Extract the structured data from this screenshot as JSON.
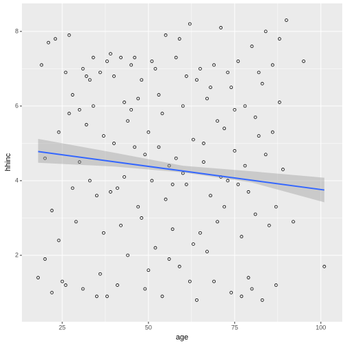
{
  "chart_data": {
    "type": "scatter",
    "xlabel": "age",
    "ylabel": "hhinc",
    "x": [
      18,
      19,
      20,
      21,
      22,
      23,
      24,
      25,
      26,
      27,
      28,
      29,
      30,
      31,
      32,
      33,
      34,
      35,
      36,
      37,
      38,
      39,
      40,
      41,
      42,
      43,
      44,
      45,
      46,
      47,
      48,
      49,
      50,
      51,
      52,
      53,
      54,
      55,
      56,
      57,
      58,
      59,
      60,
      61,
      62,
      63,
      64,
      65,
      66,
      67,
      68,
      69,
      70,
      71,
      72,
      73,
      74,
      75,
      76,
      77,
      78,
      79,
      80,
      81,
      82,
      83,
      84,
      85,
      86,
      87,
      88,
      89,
      90,
      92,
      95,
      101,
      20,
      24,
      28,
      32,
      36,
      40,
      44,
      48,
      52,
      56,
      60,
      64,
      68,
      72,
      76,
      80,
      84,
      88,
      27,
      31,
      35,
      39,
      43,
      47,
      51,
      55,
      59,
      63,
      67,
      71,
      75,
      79,
      83,
      87,
      22,
      26,
      30,
      34,
      38,
      42,
      46,
      50,
      54,
      58,
      62,
      66,
      70,
      74,
      78,
      82,
      86,
      45,
      53,
      61,
      57,
      65,
      69,
      49,
      41,
      37,
      33,
      73,
      77,
      81
    ],
    "values": [
      1.4,
      7.1,
      1.9,
      7.7,
      1.0,
      7.8,
      5.3,
      1.3,
      6.9,
      7.9,
      6.3,
      2.9,
      5.9,
      1.1,
      6.8,
      4.0,
      7.3,
      0.9,
      6.9,
      2.6,
      7.2,
      3.7,
      5.0,
      1.2,
      7.3,
      6.1,
      2.0,
      7.1,
      4.9,
      3.3,
      6.7,
      1.1,
      5.3,
      7.2,
      2.2,
      6.3,
      0.9,
      7.9,
      4.4,
      2.7,
      7.3,
      1.7,
      6.0,
      3.9,
      8.2,
      5.1,
      0.8,
      7.0,
      4.5,
      2.1,
      6.5,
      1.3,
      5.6,
      8.1,
      3.3,
      6.9,
      1.0,
      4.8,
      7.2,
      2.5,
      6.0,
      1.4,
      7.6,
      3.1,
      5.2,
      0.8,
      8.0,
      2.8,
      7.1,
      1.2,
      6.1,
      4.3,
      8.3,
      2.9,
      7.2,
      1.7,
      4.6,
      2.4,
      3.8,
      5.5,
      1.5,
      6.8,
      5.6,
      3.0,
      7.0,
      1.9,
      4.2,
      6.7,
      3.6,
      5.4,
      3.9,
      1.1,
      4.7,
      7.8,
      5.8,
      7.0,
      3.6,
      7.4,
      4.1,
      6.2,
      4.0,
      3.5,
      7.8,
      2.3,
      6.2,
      4.1,
      5.9,
      3.7,
      6.6,
      3.3,
      3.2,
      1.2,
      4.5,
      6.0,
      0.9,
      2.8,
      7.3,
      1.6,
      5.8,
      4.6,
      1.3,
      5.0,
      2.9,
      6.5,
      4.4,
      6.9,
      5.3,
      5.9,
      4.9,
      6.8,
      3.9,
      2.6,
      7.1,
      4.7,
      3.8,
      5.2,
      6.7,
      4.0,
      0.9,
      5.7
    ],
    "color": "#000000",
    "fit": {
      "x": [
        18,
        101
      ],
      "y": [
        4.78,
        3.75
      ],
      "color": "#3366ff"
    },
    "band": {
      "x": [
        18,
        40,
        60,
        80,
        101
      ],
      "lower": [
        4.48,
        4.38,
        4.22,
        3.95,
        3.42
      ],
      "upper": [
        5.12,
        4.75,
        4.4,
        4.25,
        4.08
      ],
      "color": "#999999"
    },
    "xlim": [
      13.3,
      106.2
    ],
    "ylim": [
      0.22,
      8.75
    ],
    "xticks": [
      25,
      50,
      75,
      100
    ],
    "yticks": [
      2,
      4,
      6,
      8
    ],
    "grid": true
  }
}
